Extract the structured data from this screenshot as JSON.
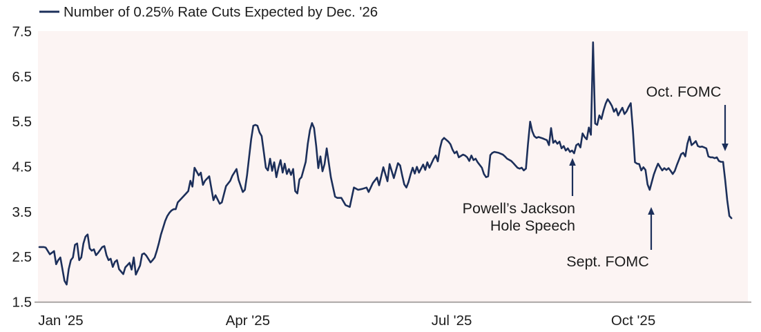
{
  "chart_data": {
    "type": "line",
    "legend_label": "Number of 0.25% Rate Cuts Expected by Dec. '26",
    "x_ticks": [
      "Jan '25",
      "Apr '25",
      "Jul '25",
      "Oct '25"
    ],
    "y_ticks": [
      "7.5",
      "6.5",
      "5.5",
      "4.5",
      "3.5",
      "2.5",
      "1.5"
    ],
    "ylim": [
      1.5,
      7.5
    ],
    "xlabel": "",
    "ylabel": "",
    "grid": "off",
    "legend_position": "top-left",
    "x_unit": "days since series start (~late Dec 2024); ticks mark month starts",
    "colors": {
      "line": "#1c2f5a",
      "plot_bg": "#fcf4f3",
      "text": "#1c1c1c",
      "axis": "#a9a5a4"
    },
    "annotations": [
      {
        "id": "jackson-hole",
        "lines": [
          "Powell’s Jackson",
          "Hole Speech"
        ],
        "arrow_direction": "up",
        "points_to_value": 4.8
      },
      {
        "id": "sept-fomc",
        "lines": [
          "Sept. FOMC"
        ],
        "arrow_direction": "up",
        "points_to_value": 4.0
      },
      {
        "id": "oct-fomc",
        "lines": [
          "Oct. FOMC"
        ],
        "arrow_direction": "down",
        "points_to_value": 4.6
      }
    ],
    "series": [
      {
        "name": "Number of 0.25% Rate Cuts Expected by Dec. '26",
        "points": [
          [
            0,
            2.71
          ],
          [
            2,
            2.71
          ],
          [
            3,
            2.7
          ],
          [
            5,
            2.55
          ],
          [
            7,
            2.62
          ],
          [
            8,
            2.33
          ],
          [
            9,
            2.42
          ],
          [
            10,
            2.48
          ],
          [
            12,
            1.96
          ],
          [
            13,
            1.88
          ],
          [
            14,
            2.22
          ],
          [
            15,
            2.42
          ],
          [
            16,
            2.48
          ],
          [
            17,
            2.76
          ],
          [
            18,
            2.79
          ],
          [
            19,
            2.42
          ],
          [
            20,
            2.48
          ],
          [
            21,
            2.79
          ],
          [
            22,
            2.94
          ],
          [
            23,
            2.99
          ],
          [
            24,
            2.68
          ],
          [
            25,
            2.63
          ],
          [
            26,
            2.66
          ],
          [
            27,
            2.53
          ],
          [
            28,
            2.58
          ],
          [
            30,
            2.71
          ],
          [
            31,
            2.73
          ],
          [
            32,
            2.53
          ],
          [
            33,
            2.42
          ],
          [
            34,
            2.45
          ],
          [
            35,
            2.27
          ],
          [
            36,
            2.38
          ],
          [
            37,
            2.42
          ],
          [
            38,
            2.22
          ],
          [
            40,
            2.11
          ],
          [
            41,
            2.26
          ],
          [
            43,
            2.36
          ],
          [
            44,
            2.21
          ],
          [
            45,
            2.48
          ],
          [
            46,
            2.1
          ],
          [
            48,
            2.3
          ],
          [
            49,
            2.55
          ],
          [
            50,
            2.57
          ],
          [
            51,
            2.52
          ],
          [
            53,
            2.37
          ],
          [
            54,
            2.42
          ],
          [
            55,
            2.48
          ],
          [
            56,
            2.63
          ],
          [
            57,
            2.8
          ],
          [
            58,
            2.99
          ],
          [
            59,
            3.14
          ],
          [
            60,
            3.29
          ],
          [
            61,
            3.4
          ],
          [
            62,
            3.47
          ],
          [
            63,
            3.52
          ],
          [
            64,
            3.55
          ],
          [
            65,
            3.55
          ],
          [
            66,
            3.7
          ],
          [
            68,
            3.8
          ],
          [
            70,
            3.9
          ],
          [
            71,
            3.95
          ],
          [
            72,
            4.18
          ],
          [
            73,
            4.05
          ],
          [
            74,
            4.47
          ],
          [
            76,
            4.3
          ],
          [
            77,
            4.36
          ],
          [
            78,
            4.09
          ],
          [
            79,
            4.18
          ],
          [
            81,
            4.28
          ],
          [
            83,
            3.75
          ],
          [
            84,
            3.86
          ],
          [
            86,
            3.67
          ],
          [
            87,
            3.7
          ],
          [
            89,
            4.06
          ],
          [
            91,
            4.18
          ],
          [
            92,
            4.29
          ],
          [
            94,
            4.44
          ],
          [
            95,
            4.2
          ],
          [
            97,
            3.93
          ],
          [
            98,
            3.98
          ],
          [
            99,
            4.3
          ],
          [
            100,
            4.7
          ],
          [
            101,
            5.1
          ],
          [
            102,
            5.4
          ],
          [
            103,
            5.42
          ],
          [
            104,
            5.4
          ],
          [
            105,
            5.25
          ],
          [
            106,
            5.17
          ],
          [
            107,
            4.82
          ],
          [
            108,
            4.47
          ],
          [
            109,
            4.41
          ],
          [
            110,
            4.67
          ],
          [
            111,
            4.4
          ],
          [
            112,
            4.59
          ],
          [
            113,
            4.26
          ],
          [
            114,
            4.47
          ],
          [
            115,
            4.64
          ],
          [
            116,
            4.36
          ],
          [
            117,
            4.56
          ],
          [
            118,
            4.33
          ],
          [
            119,
            4.44
          ],
          [
            120,
            4.31
          ],
          [
            121,
            4.44
          ],
          [
            122,
            3.95
          ],
          [
            123,
            3.9
          ],
          [
            124,
            4.21
          ],
          [
            125,
            4.26
          ],
          [
            127,
            4.6
          ],
          [
            128,
            5.0
          ],
          [
            129,
            5.3
          ],
          [
            130,
            5.46
          ],
          [
            131,
            5.35
          ],
          [
            132,
            4.95
          ],
          [
            133,
            4.46
          ],
          [
            134,
            4.72
          ],
          [
            135,
            4.39
          ],
          [
            136,
            4.55
          ],
          [
            137,
            4.9
          ],
          [
            139,
            4.26
          ],
          [
            141,
            3.83
          ],
          [
            142,
            3.8
          ],
          [
            144,
            3.8
          ],
          [
            146,
            3.64
          ],
          [
            148,
            3.6
          ],
          [
            150,
            4.03
          ],
          [
            152,
            3.98
          ],
          [
            154,
            4.0
          ],
          [
            156,
            4.03
          ],
          [
            157,
            3.93
          ],
          [
            159,
            4.13
          ],
          [
            161,
            4.25
          ],
          [
            162,
            4.08
          ],
          [
            164,
            4.48
          ],
          [
            166,
            4.17
          ],
          [
            167,
            4.55
          ],
          [
            169,
            4.24
          ],
          [
            171,
            4.57
          ],
          [
            172,
            4.52
          ],
          [
            173,
            4.3
          ],
          [
            174,
            4.1
          ],
          [
            175,
            4.03
          ],
          [
            176,
            4.15
          ],
          [
            177,
            4.32
          ],
          [
            178,
            4.47
          ],
          [
            179,
            4.34
          ],
          [
            180,
            4.49
          ],
          [
            181,
            4.36
          ],
          [
            183,
            4.54
          ],
          [
            184,
            4.42
          ],
          [
            185,
            4.59
          ],
          [
            186,
            4.47
          ],
          [
            188,
            4.67
          ],
          [
            189,
            4.74
          ],
          [
            190,
            4.61
          ],
          [
            191,
            4.9
          ],
          [
            192,
            5.08
          ],
          [
            193,
            5.13
          ],
          [
            195,
            5.05
          ],
          [
            196,
            4.99
          ],
          [
            197,
            4.87
          ],
          [
            198,
            4.79
          ],
          [
            199,
            4.83
          ],
          [
            200,
            4.7
          ],
          [
            202,
            4.76
          ],
          [
            203,
            4.74
          ],
          [
            204,
            4.7
          ],
          [
            205,
            4.62
          ],
          [
            206,
            4.74
          ],
          [
            207,
            4.64
          ],
          [
            208,
            4.67
          ],
          [
            209,
            4.59
          ],
          [
            211,
            4.47
          ],
          [
            212,
            4.33
          ],
          [
            213,
            4.26
          ],
          [
            214,
            4.28
          ],
          [
            215,
            4.75
          ],
          [
            216,
            4.8
          ],
          [
            217,
            4.82
          ],
          [
            219,
            4.8
          ],
          [
            221,
            4.76
          ],
          [
            222,
            4.72
          ],
          [
            223,
            4.67
          ],
          [
            225,
            4.62
          ],
          [
            226,
            4.57
          ],
          [
            227,
            4.52
          ],
          [
            228,
            4.47
          ],
          [
            229,
            4.45
          ],
          [
            230,
            4.47
          ],
          [
            231,
            4.41
          ],
          [
            232,
            4.45
          ],
          [
            233,
            5.0
          ],
          [
            234,
            5.49
          ],
          [
            235,
            5.28
          ],
          [
            236,
            5.17
          ],
          [
            237,
            5.13
          ],
          [
            238,
            5.15
          ],
          [
            240,
            5.12
          ],
          [
            241,
            5.1
          ],
          [
            242,
            5.08
          ],
          [
            243,
            4.97
          ],
          [
            244,
            5.35
          ],
          [
            245,
            5.02
          ],
          [
            246,
            5.07
          ],
          [
            247,
            5.0
          ],
          [
            248,
            5.05
          ],
          [
            249,
            4.9
          ],
          [
            250,
            4.95
          ],
          [
            251,
            4.85
          ],
          [
            252,
            4.9
          ],
          [
            253,
            4.82
          ],
          [
            254,
            4.85
          ],
          [
            255,
            4.79
          ],
          [
            256,
            4.97
          ],
          [
            257,
            5.0
          ],
          [
            258,
            4.92
          ],
          [
            259,
            5.23
          ],
          [
            260,
            5.15
          ],
          [
            261,
            5.1
          ],
          [
            262,
            5.36
          ],
          [
            263,
            5.2
          ],
          [
            264,
            7.25
          ],
          [
            265,
            5.45
          ],
          [
            266,
            5.42
          ],
          [
            267,
            5.63
          ],
          [
            268,
            5.55
          ],
          [
            269,
            5.74
          ],
          [
            270,
            5.89
          ],
          [
            271,
            5.99
          ],
          [
            272,
            5.92
          ],
          [
            273,
            5.84
          ],
          [
            274,
            5.71
          ],
          [
            275,
            5.78
          ],
          [
            276,
            5.63
          ],
          [
            277,
            5.72
          ],
          [
            278,
            5.8
          ],
          [
            279,
            5.66
          ],
          [
            280,
            5.72
          ],
          [
            281,
            5.82
          ],
          [
            282,
            5.9
          ],
          [
            283,
            5.3
          ],
          [
            284,
            4.59
          ],
          [
            285,
            4.56
          ],
          [
            286,
            4.55
          ],
          [
            287,
            4.41
          ],
          [
            288,
            4.48
          ],
          [
            289,
            4.42
          ],
          [
            290,
            4.1
          ],
          [
            291,
            3.98
          ],
          [
            292,
            4.15
          ],
          [
            293,
            4.32
          ],
          [
            294,
            4.45
          ],
          [
            295,
            4.56
          ],
          [
            296,
            4.48
          ],
          [
            297,
            4.41
          ],
          [
            298,
            4.46
          ],
          [
            299,
            4.42
          ],
          [
            300,
            4.46
          ],
          [
            301,
            4.4
          ],
          [
            302,
            4.33
          ],
          [
            303,
            4.4
          ],
          [
            304,
            4.53
          ],
          [
            305,
            4.65
          ],
          [
            306,
            4.77
          ],
          [
            307,
            4.8
          ],
          [
            308,
            4.72
          ],
          [
            309,
            5.0
          ],
          [
            310,
            5.16
          ],
          [
            311,
            4.97
          ],
          [
            312,
            5.01
          ],
          [
            313,
            5.06
          ],
          [
            314,
            4.95
          ],
          [
            315,
            4.93
          ],
          [
            316,
            4.94
          ],
          [
            317,
            4.92
          ],
          [
            318,
            4.9
          ],
          [
            319,
            4.72
          ],
          [
            320,
            4.7
          ],
          [
            321,
            4.7
          ],
          [
            322,
            4.68
          ],
          [
            323,
            4.7
          ],
          [
            324,
            4.62
          ],
          [
            325,
            4.6
          ],
          [
            326,
            4.6
          ],
          [
            327,
            4.2
          ],
          [
            328,
            3.75
          ],
          [
            329,
            3.4
          ],
          [
            330,
            3.35
          ]
        ]
      }
    ]
  }
}
